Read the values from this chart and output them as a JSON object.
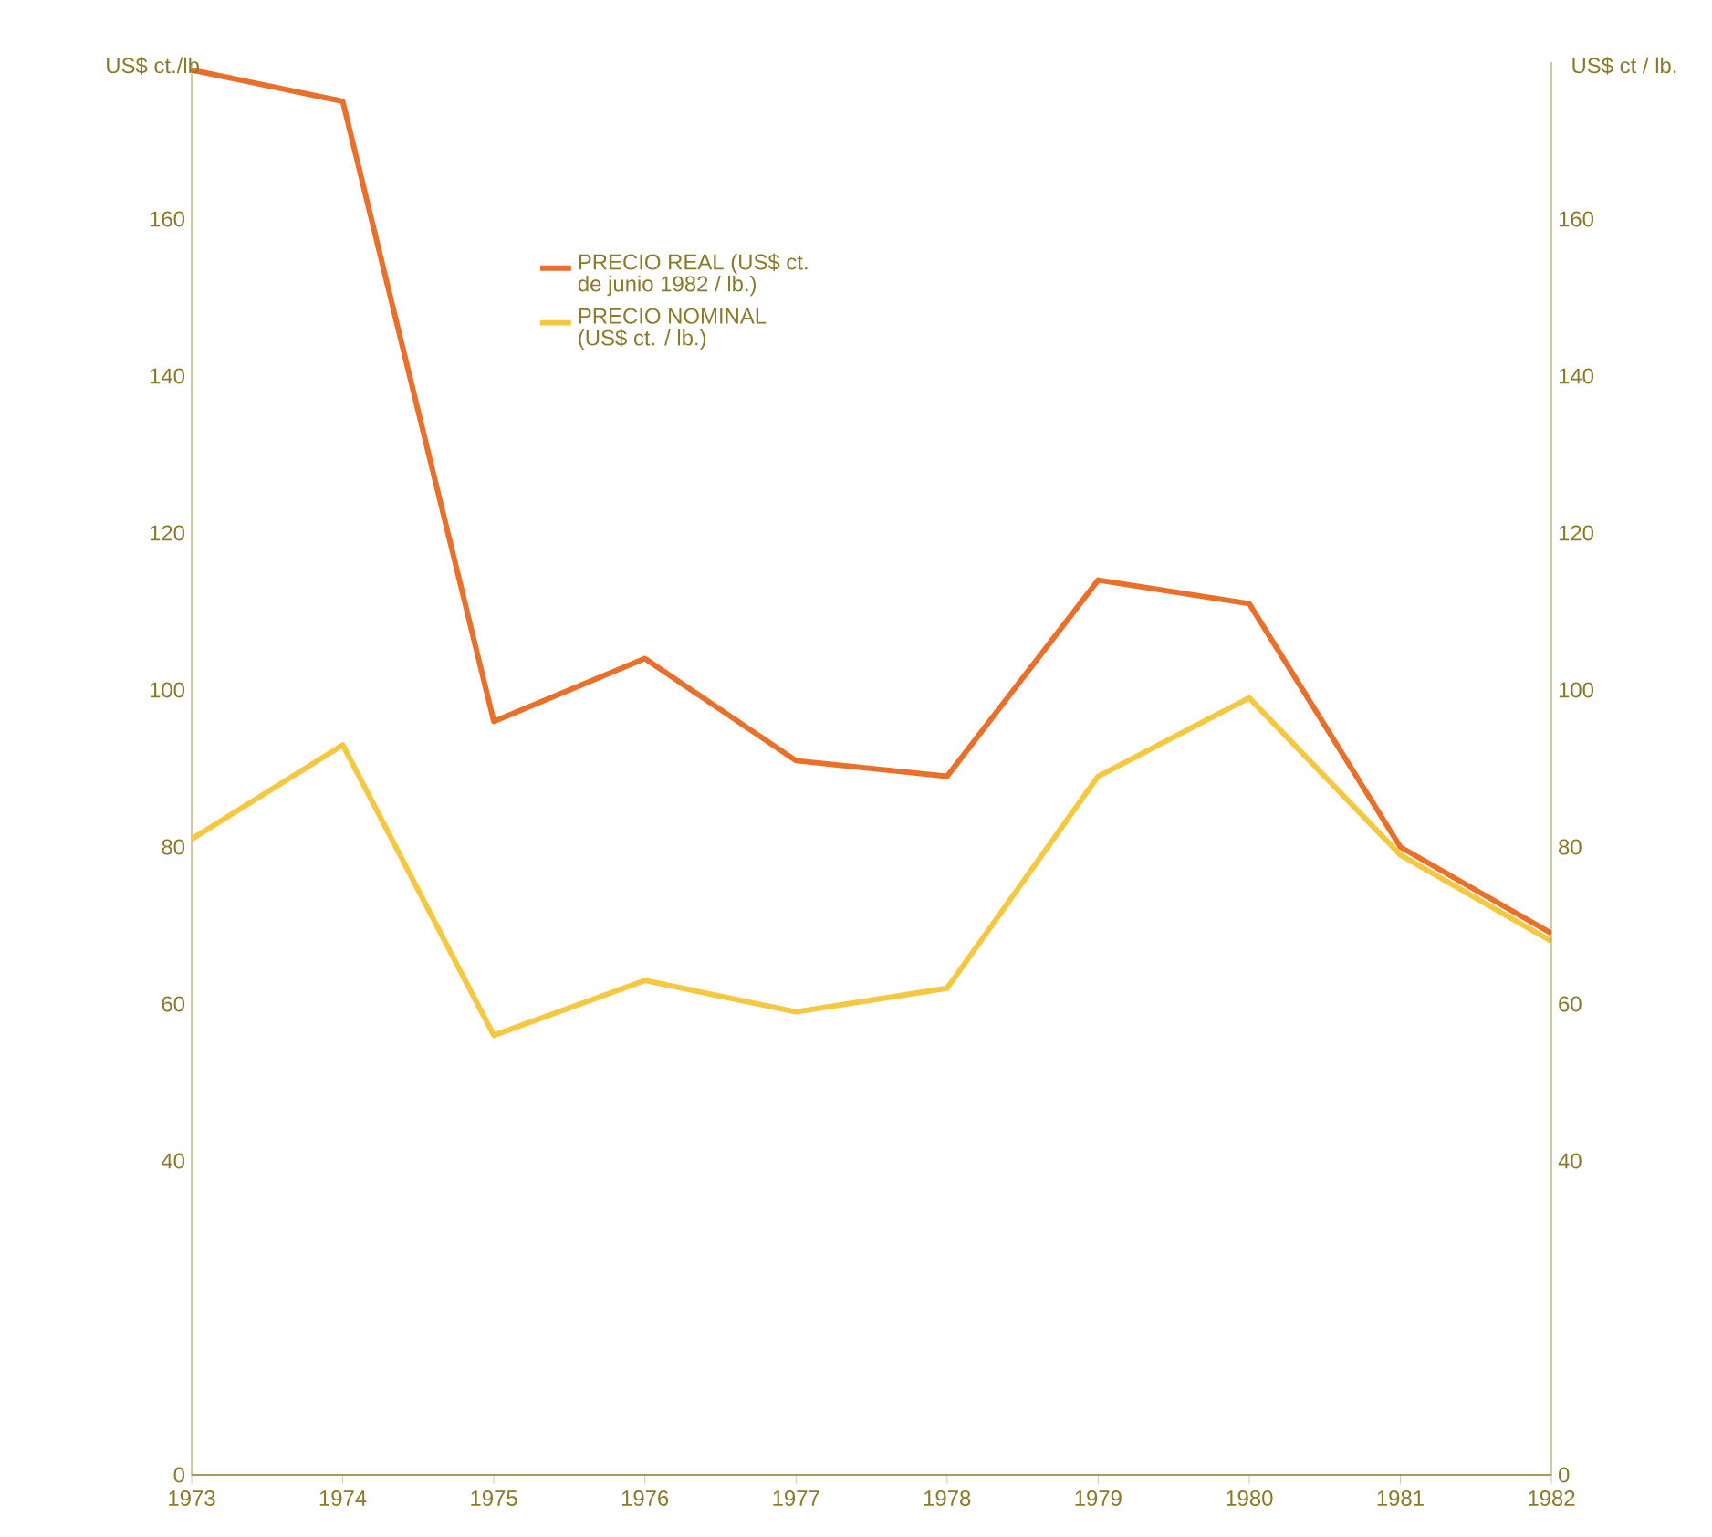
{
  "chart_data": {
    "type": "line",
    "ylabel": "US$ ct./lb",
    "y2label": "US$ ct / lb.",
    "x": [
      1973,
      1974,
      1975,
      1976,
      1977,
      1978,
      1979,
      1980,
      1981,
      1982
    ],
    "xlim": [
      1973,
      1982
    ],
    "xticks": [
      1973,
      1974,
      1975,
      1976,
      1977,
      1978,
      1979,
      1980,
      1981,
      1982
    ],
    "ylim": [
      0,
      180
    ],
    "yticks": [
      0,
      40,
      60,
      80,
      100,
      120,
      140,
      160
    ],
    "y2lim": [
      0,
      180
    ],
    "y2ticks": [
      0,
      40,
      60,
      80,
      100,
      120,
      140,
      160
    ],
    "series": [
      {
        "name": "PRECIO REAL (US$ ct. de junio 1982 / lb.)",
        "color": "#e8702a",
        "values": [
          179,
          175,
          96,
          104,
          91,
          89,
          114,
          111,
          80,
          69
        ]
      },
      {
        "name": "PRECIO NOMINAL (US$ ct. / lb.)",
        "color": "#f5c842",
        "values": [
          81,
          93,
          56,
          63,
          59,
          62,
          89,
          99,
          79,
          68
        ]
      }
    ],
    "legend": "top",
    "marker": "none",
    "line_style": "solid",
    "grid": false
  }
}
